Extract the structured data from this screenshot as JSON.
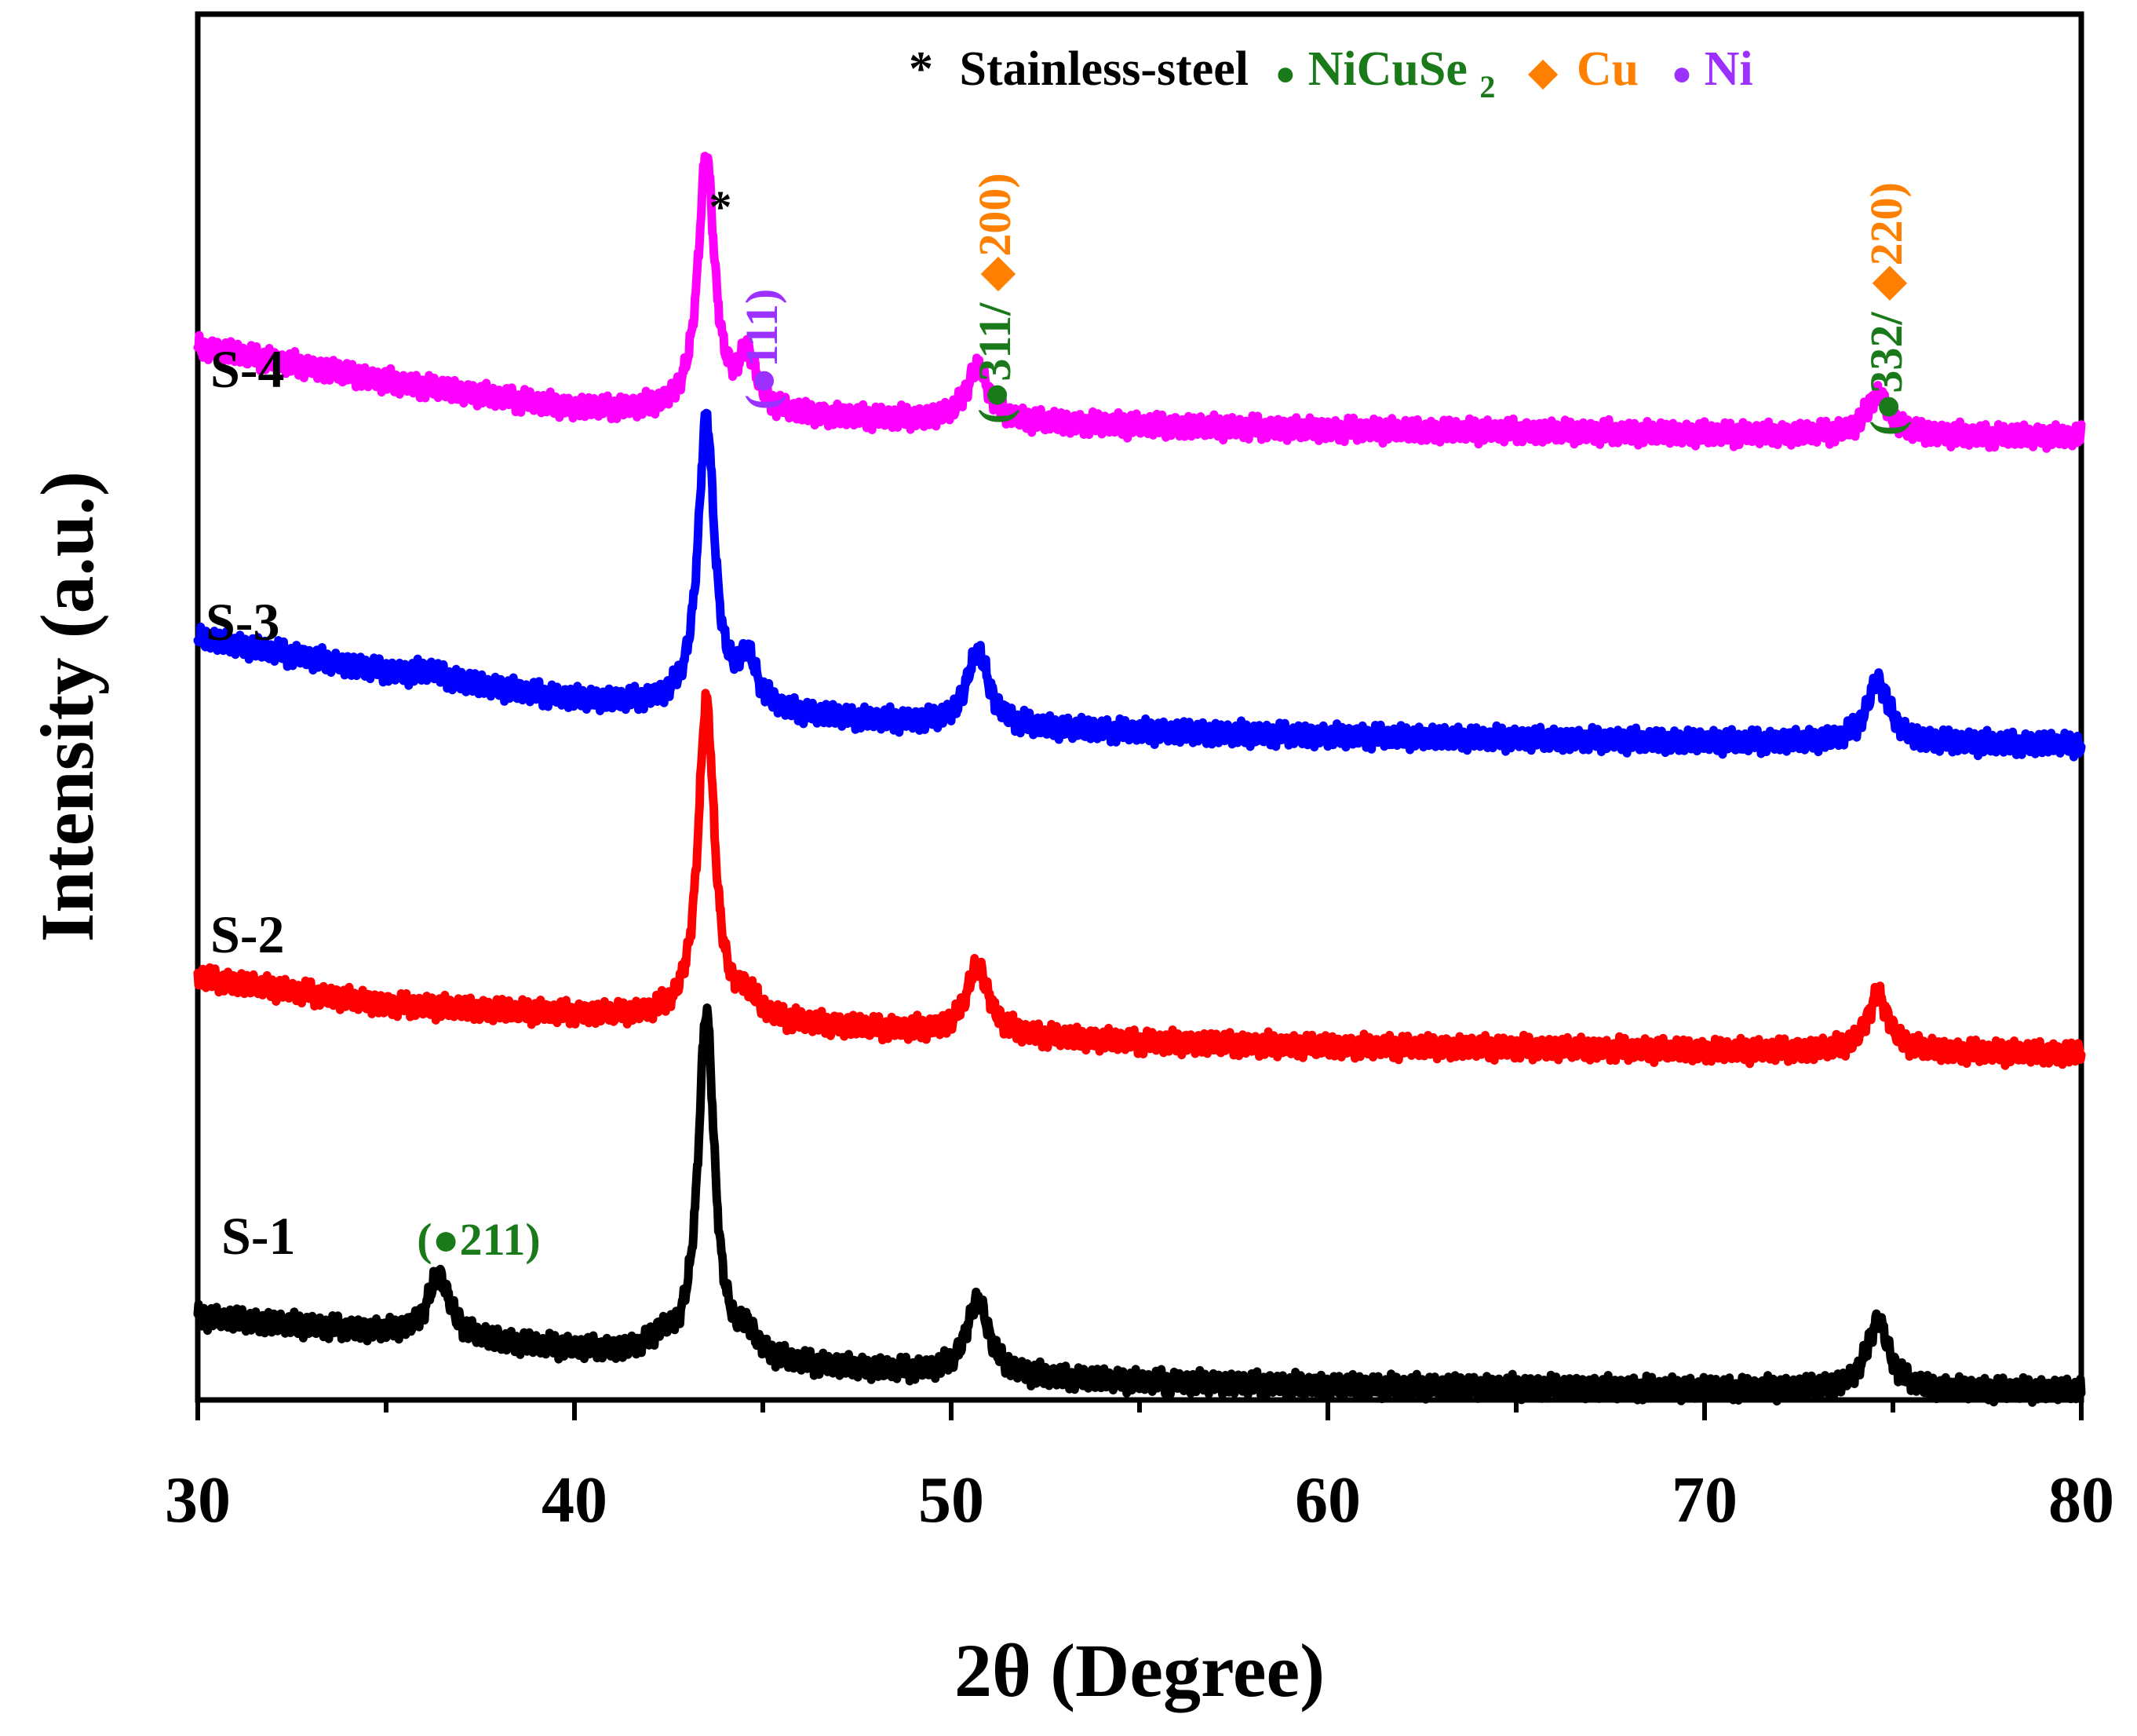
{
  "chart_data": {
    "type": "line",
    "title": "",
    "xlabel": "2θ (Degree)",
    "ylabel": "Intensity (a.u.)",
    "xlim": [
      30,
      80
    ],
    "xticks": [
      30,
      40,
      50,
      60,
      70,
      80
    ],
    "xtick_labels": [
      "30",
      "40",
      "50",
      "60",
      "70",
      "80"
    ],
    "ylim": [
      0,
      100
    ],
    "y_ticks_visible": false,
    "legend": {
      "position": "top-right",
      "entries": [
        {
          "marker": "*",
          "label": "Stainless-steel",
          "color": "#000000"
        },
        {
          "marker": "●",
          "label": "NiCuSe",
          "subscript": "2",
          "color": "#1a7a1a"
        },
        {
          "marker": "◆",
          "label": "Cu",
          "color": "#ff8000"
        },
        {
          "marker": "●",
          "label": "Ni",
          "color": "#9b30ff"
        }
      ]
    },
    "series": [
      {
        "name": "S-1",
        "color": "#000000",
        "baseline": {
          "x": [
            30,
            35,
            40,
            45,
            50,
            55,
            60,
            65,
            70,
            75,
            80
          ],
          "y": [
            6.0,
            4.8,
            3.6,
            2.6,
            1.8,
            1.3,
            1.0,
            0.9,
            0.8,
            0.7,
            0.7
          ]
        },
        "peaks": [
          {
            "x": 36.4,
            "height": 4.5,
            "width": 0.35
          },
          {
            "x": 42.3,
            "height": 1.0,
            "width": 0.3
          },
          {
            "x": 43.5,
            "height": 25.0,
            "width": 0.26
          },
          {
            "x": 44.6,
            "height": 1.5,
            "width": 0.3
          },
          {
            "x": 50.7,
            "height": 5.5,
            "width": 0.35
          },
          {
            "x": 74.6,
            "height": 5.0,
            "width": 0.35
          }
        ]
      },
      {
        "name": "S-2",
        "color": "#ff0000",
        "baseline": {
          "x": [
            30,
            35,
            40,
            45,
            50,
            55,
            60,
            65,
            70,
            75,
            80
          ],
          "y": [
            30.5,
            28.5,
            27.8,
            27.2,
            26.4,
            25.8,
            25.5,
            25.4,
            25.2,
            25.1,
            25.0
          ]
        },
        "peaks": [
          {
            "x": 43.5,
            "height": 23.0,
            "width": 0.26
          },
          {
            "x": 44.6,
            "height": 1.5,
            "width": 0.3
          },
          {
            "x": 50.7,
            "height": 5.0,
            "width": 0.35
          },
          {
            "x": 74.6,
            "height": 4.0,
            "width": 0.35
          }
        ]
      },
      {
        "name": "S-3",
        "color": "#0000ff",
        "baseline": {
          "x": [
            30,
            35,
            40,
            45,
            50,
            55,
            60,
            65,
            70,
            75,
            80
          ],
          "y": [
            55.0,
            52.5,
            50.5,
            49.5,
            48.6,
            48.2,
            47.9,
            47.7,
            47.5,
            47.4,
            47.3
          ]
        },
        "peaks": [
          {
            "x": 36.2,
            "height": 0.6,
            "width": 0.4
          },
          {
            "x": 43.5,
            "height": 21.0,
            "width": 0.26
          },
          {
            "x": 44.6,
            "height": 3.5,
            "width": 0.3
          },
          {
            "x": 50.7,
            "height": 5.5,
            "width": 0.35
          },
          {
            "x": 74.6,
            "height": 4.5,
            "width": 0.35
          }
        ]
      },
      {
        "name": "S-4",
        "color": "#ff00ff",
        "baseline": {
          "x": [
            30,
            35,
            40,
            45,
            50,
            55,
            60,
            65,
            70,
            75,
            80
          ],
          "y": [
            76.0,
            73.5,
            71.5,
            71.0,
            70.6,
            70.3,
            70.0,
            69.9,
            69.7,
            69.6,
            69.5
          ]
        },
        "peaks": [
          {
            "x": 43.5,
            "height": 18.5,
            "width": 0.26
          },
          {
            "x": 44.6,
            "height": 3.8,
            "width": 0.3
          },
          {
            "x": 50.7,
            "height": 4.0,
            "width": 0.35
          },
          {
            "x": 74.6,
            "height": 3.0,
            "width": 0.35
          }
        ]
      }
    ],
    "annotations": [
      {
        "text": "*",
        "x": 43.5,
        "color": "#000000",
        "orientation": "horizontal"
      },
      {
        "text": "(●111)",
        "x": 44.9,
        "color": "#9b30ff",
        "orientation": "vertical"
      },
      {
        "text": "(●311/",
        "text2": "◆200)",
        "x": 51.2,
        "color": "#1a7a1a",
        "color2": "#ff8000",
        "orientation": "vertical"
      },
      {
        "text": "(●332/",
        "text2": "◆220)",
        "x": 75.1,
        "color": "#1a7a1a",
        "color2": "#ff8000",
        "orientation": "vertical"
      },
      {
        "text": "(●211)",
        "x": 37.2,
        "color": "#1a7a1a",
        "orientation": "horizontal"
      }
    ]
  }
}
